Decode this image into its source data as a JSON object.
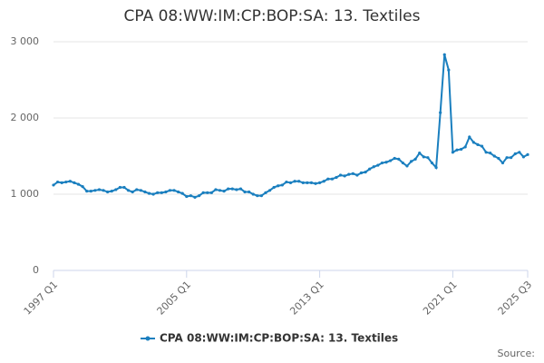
{
  "chart_data": {
    "type": "line",
    "title": "CPA 08:WW:IM:CP:BOP:SA: 13. Textiles",
    "categories": [
      "1997 Q1",
      null,
      null,
      null,
      null,
      null,
      null,
      null,
      null,
      null,
      null,
      null,
      null,
      null,
      null,
      null,
      null,
      null,
      null,
      null,
      null,
      null,
      null,
      null,
      null,
      null,
      null,
      null,
      null,
      null,
      null,
      null,
      "2005 Q1",
      null,
      null,
      null,
      null,
      null,
      null,
      null,
      null,
      null,
      null,
      null,
      null,
      null,
      null,
      null,
      null,
      null,
      null,
      null,
      null,
      null,
      null,
      null,
      null,
      null,
      null,
      null,
      null,
      null,
      null,
      null,
      "2013 Q1",
      null,
      null,
      null,
      null,
      null,
      null,
      null,
      null,
      null,
      null,
      null,
      null,
      null,
      null,
      null,
      null,
      null,
      null,
      null,
      null,
      null,
      null,
      null,
      null,
      null,
      null,
      null,
      null,
      null,
      null,
      null,
      "2021 Q1",
      null,
      null,
      null,
      null,
      null,
      null,
      null,
      null,
      null,
      null,
      null,
      null,
      null,
      null,
      null,
      null,
      null,
      "2025 Q3"
    ],
    "series": [
      {
        "name": "CPA 08:WW:IM:CP:BOP:SA: 13. Textiles",
        "color": "#1a7fbf",
        "values": [
          1120,
          1160,
          1150,
          1160,
          1170,
          1150,
          1130,
          1100,
          1040,
          1040,
          1050,
          1060,
          1050,
          1030,
          1040,
          1060,
          1090,
          1090,
          1050,
          1030,
          1060,
          1050,
          1030,
          1010,
          1000,
          1020,
          1020,
          1030,
          1050,
          1050,
          1030,
          1010,
          970,
          980,
          960,
          980,
          1020,
          1020,
          1020,
          1060,
          1050,
          1040,
          1070,
          1070,
          1060,
          1070,
          1030,
          1030,
          1000,
          980,
          980,
          1020,
          1050,
          1090,
          1110,
          1120,
          1160,
          1150,
          1170,
          1170,
          1150,
          1150,
          1150,
          1140,
          1150,
          1170,
          1200,
          1200,
          1220,
          1250,
          1240,
          1260,
          1270,
          1250,
          1280,
          1290,
          1330,
          1360,
          1380,
          1410,
          1420,
          1440,
          1470,
          1460,
          1410,
          1370,
          1430,
          1460,
          1540,
          1490,
          1480,
          1410,
          1350,
          2070,
          2830,
          2630,
          1550,
          1580,
          1590,
          1620,
          1750,
          1680,
          1650,
          1630,
          1550,
          1540,
          1500,
          1470,
          1410,
          1480,
          1480,
          1530,
          1550,
          1490,
          1520
        ]
      }
    ],
    "ylim": [
      0,
      3000
    ],
    "yticks": [
      0,
      {
        "value": 1000,
        "label": "1 000"
      },
      {
        "value": 2000,
        "label": "2 000"
      },
      {
        "value": 3000,
        "label": "3 000"
      }
    ],
    "grid": true,
    "legend": "bottom",
    "source": "Source:"
  }
}
